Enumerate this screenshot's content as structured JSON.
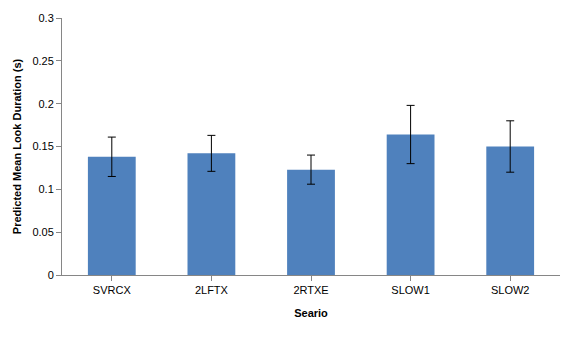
{
  "chart_data": {
    "type": "bar",
    "x_label": "Seario",
    "y_label": "Predicted Mean Look Duration (s)",
    "categories": [
      "SVRCX",
      "2LFTX",
      "2RTXE",
      "SLOW1",
      "SLOW2"
    ],
    "values": [
      0.138,
      0.142,
      0.123,
      0.164,
      0.15
    ],
    "errors": [
      0.023,
      0.021,
      0.017,
      0.034,
      0.03
    ],
    "color": "#4f81bd",
    "ylim": [
      0,
      0.3
    ],
    "yticks": [
      0,
      0.05,
      0.1,
      0.15,
      0.2,
      0.25,
      0.3
    ],
    "grid": false
  }
}
